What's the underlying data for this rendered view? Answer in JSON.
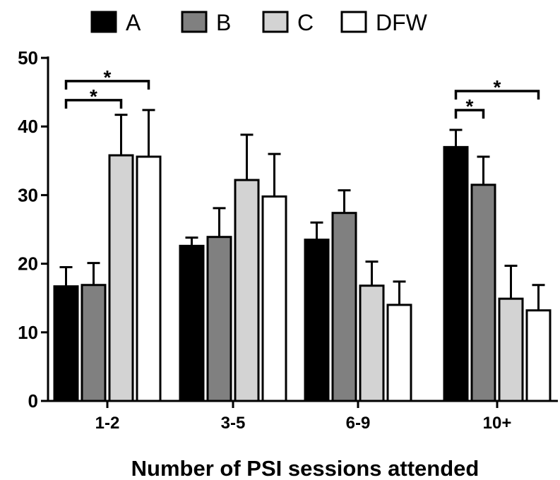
{
  "chart_data": {
    "type": "bar",
    "xlabel": "Number of PSI sessions attended",
    "ylabel": "",
    "ylim": [
      0,
      50
    ],
    "yticks": [
      0,
      10,
      20,
      30,
      40,
      50
    ],
    "categories": [
      "1-2",
      "3-5",
      "6-9",
      "10+"
    ],
    "legend_position": "top",
    "error_bars": "upper",
    "series": [
      {
        "name": "A",
        "color": "#000000",
        "values": [
          16.7,
          22.6,
          23.5,
          37.0
        ],
        "errors": [
          2.8,
          1.2,
          2.5,
          2.5
        ]
      },
      {
        "name": "B",
        "color": "#808080",
        "values": [
          16.9,
          23.9,
          27.4,
          31.5
        ],
        "errors": [
          3.2,
          4.2,
          3.3,
          4.1
        ]
      },
      {
        "name": "C",
        "color": "#d3d3d3",
        "values": [
          35.8,
          32.2,
          16.8,
          14.9
        ],
        "errors": [
          5.9,
          6.6,
          3.5,
          4.8
        ]
      },
      {
        "name": "DFW",
        "color": "#ffffff",
        "values": [
          35.6,
          29.8,
          14.0,
          13.2
        ],
        "errors": [
          6.8,
          6.2,
          3.4,
          3.7
        ]
      }
    ],
    "annotations": [
      {
        "category": "1-2",
        "from": "A",
        "to": "C",
        "label": "*"
      },
      {
        "category": "1-2",
        "from": "A",
        "to": "DFW",
        "label": "*"
      },
      {
        "category": "10+",
        "from": "A",
        "to": "B",
        "label": "*"
      },
      {
        "category": "10+",
        "from": "A",
        "to": "DFW",
        "label": "*"
      }
    ]
  }
}
